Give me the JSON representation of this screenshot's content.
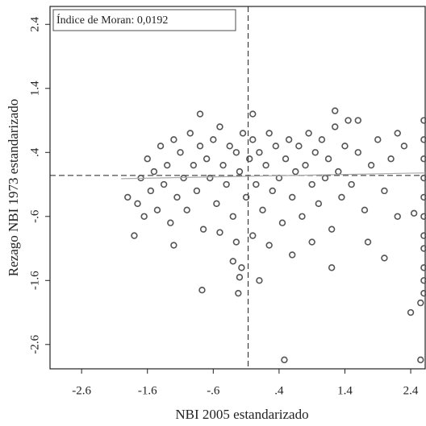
{
  "chart_data": {
    "type": "scatter",
    "annotation": "Índice de Moran: 0,0192",
    "x_label": "NBI 2005 estandarizado",
    "y_label": "Rezago NBI 1973 estandarizado",
    "xlim": [
      -3.08,
      2.62
    ],
    "ylim": [
      -2.98,
      2.68
    ],
    "xticks": [
      {
        "value": -2.6,
        "label": "-2.6"
      },
      {
        "value": -1.6,
        "label": "-1.6"
      },
      {
        "value": -0.6,
        "label": "-.6"
      },
      {
        "value": 0.4,
        "label": ".4"
      },
      1.4,
      2.4
    ],
    "yticks": [
      {
        "value": -2.6,
        "label": "-2.6"
      },
      {
        "value": -1.6,
        "label": "-1.6"
      },
      {
        "value": -0.6,
        "label": "-.6"
      },
      {
        "value": 0.4,
        "label": ".4"
      },
      1.4,
      2.4
    ],
    "vline": -0.07,
    "hline": 0.04,
    "fit_line": {
      "x": [
        -2.0,
        2.62
      ],
      "y": [
        -0.01,
        0.08
      ]
    },
    "color": "#555555",
    "x": [
      -1.9,
      -1.8,
      -1.75,
      -1.7,
      -1.65,
      -1.6,
      -1.55,
      -1.5,
      -1.45,
      -1.4,
      -1.35,
      -1.3,
      -1.25,
      -1.2,
      -1.15,
      -1.1,
      -1.05,
      -1.0,
      -0.95,
      -0.9,
      -0.85,
      -0.8,
      -0.75,
      -0.7,
      -0.65,
      -0.6,
      -0.55,
      -0.5,
      -0.45,
      -0.4,
      -0.35,
      -0.3,
      -0.25,
      -0.2,
      -0.15,
      -0.1,
      -0.05,
      0.0,
      0.05,
      0.1,
      0.15,
      0.2,
      0.25,
      0.3,
      0.35,
      0.4,
      0.45,
      0.5,
      0.55,
      0.6,
      0.65,
      0.7,
      0.75,
      0.8,
      0.85,
      0.9,
      0.95,
      1.0,
      1.05,
      1.1,
      1.15,
      1.2,
      1.25,
      1.3,
      1.35,
      1.4,
      1.45,
      1.5,
      1.6,
      1.7,
      1.8,
      1.9,
      2.0,
      2.1,
      2.2,
      2.3,
      2.2,
      1.75,
      2.0,
      1.2,
      0.9,
      0.6,
      0.25,
      0.0,
      -0.25,
      -0.5,
      -1.2,
      -0.3,
      -0.17,
      -0.2,
      -0.22,
      -0.77,
      0.48,
      0.1,
      2.6,
      2.6,
      2.6,
      2.6,
      2.6,
      2.6,
      2.6,
      2.6,
      2.6,
      2.6,
      2.6,
      2.55,
      2.4,
      2.55,
      2.45,
      -0.8,
      0.0,
      1.25,
      1.6
    ],
    "y": [
      -0.3,
      -0.9,
      -0.4,
      0.0,
      -0.6,
      0.3,
      -0.2,
      0.1,
      -0.5,
      0.5,
      -0.1,
      0.2,
      -0.7,
      0.6,
      -0.3,
      0.4,
      0.0,
      -0.5,
      0.7,
      0.2,
      -0.2,
      0.5,
      -0.8,
      0.3,
      0.0,
      0.6,
      -0.4,
      0.8,
      0.2,
      -0.1,
      0.5,
      -0.6,
      0.4,
      0.1,
      0.7,
      -0.3,
      0.3,
      0.6,
      -0.1,
      0.4,
      -0.5,
      0.2,
      0.7,
      -0.2,
      0.5,
      0.0,
      -0.7,
      0.3,
      0.6,
      -0.3,
      0.1,
      0.5,
      -0.6,
      0.2,
      0.7,
      -0.1,
      0.4,
      -0.4,
      0.6,
      0.0,
      0.3,
      -0.8,
      0.8,
      0.1,
      -0.3,
      0.5,
      0.9,
      -0.1,
      0.4,
      -0.5,
      0.2,
      0.6,
      -0.2,
      0.3,
      -0.6,
      0.5,
      0.7,
      -1.0,
      -1.25,
      -1.4,
      -1.0,
      -1.2,
      -1.05,
      -0.9,
      -1.0,
      -0.85,
      -1.05,
      -1.3,
      -1.4,
      -1.55,
      -1.8,
      -1.75,
      -2.84,
      -1.6,
      0.9,
      0.6,
      0.3,
      0.0,
      -0.3,
      -0.6,
      -0.9,
      -1.1,
      -1.4,
      -1.6,
      -1.8,
      -1.95,
      -2.1,
      -2.84,
      -0.55,
      1.0,
      1.0,
      1.05,
      0.9
    ]
  }
}
